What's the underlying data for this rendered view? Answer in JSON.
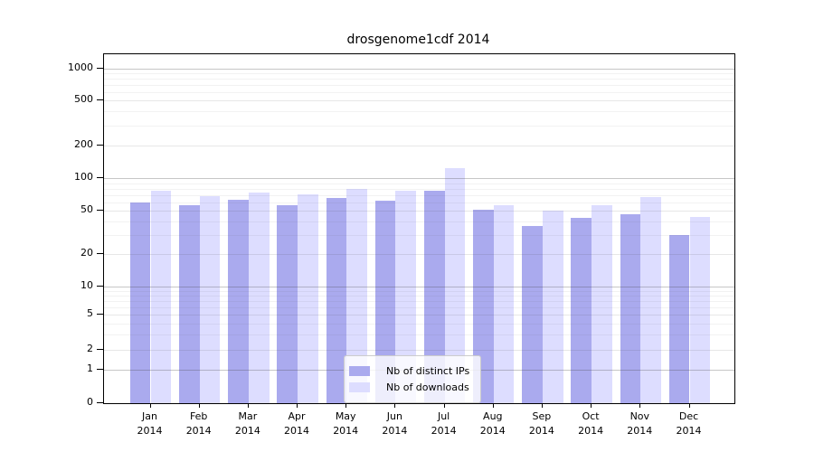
{
  "chart_data": {
    "type": "bar",
    "title": "drosgenome1cdf 2014",
    "categories": [
      "Jan 2014",
      "Feb 2014",
      "Mar 2014",
      "Apr 2014",
      "May 2014",
      "Jun 2014",
      "Jul 2014",
      "Aug 2014",
      "Sep 2014",
      "Oct 2014",
      "Nov 2014",
      "Dec 2014"
    ],
    "months": [
      "Jan",
      "Feb",
      "Mar",
      "Apr",
      "May",
      "Jun",
      "Jul",
      "Aug",
      "Sep",
      "Oct",
      "Nov",
      "Dec"
    ],
    "year": "2014",
    "series": [
      {
        "name": "Nb of distinct IPs",
        "color": "#aaaaee",
        "values": [
          60,
          57,
          63,
          56,
          66,
          62,
          77,
          51,
          36,
          43,
          47,
          30
        ]
      },
      {
        "name": "Nb of downloads",
        "color": "#ddddff",
        "values": [
          77,
          69,
          74,
          71,
          80,
          77,
          124,
          56,
          50,
          57,
          67,
          44
        ]
      }
    ],
    "y_axis": {
      "scale": "symlog",
      "ticks": [
        0,
        1,
        2,
        5,
        10,
        20,
        50,
        100,
        200,
        500,
        1000
      ],
      "range": [
        0,
        1000
      ]
    },
    "x_axis": {
      "label_lines": 2
    },
    "grid": true,
    "legend_position": "bottom-center",
    "colors": {
      "bar_distinct_ips": "#aaaaee",
      "bar_downloads": "#ddddff",
      "axis": "#000000",
      "grid_major": "#c8c8c8",
      "grid_minor": "#ededed",
      "background": "#ffffff"
    }
  }
}
